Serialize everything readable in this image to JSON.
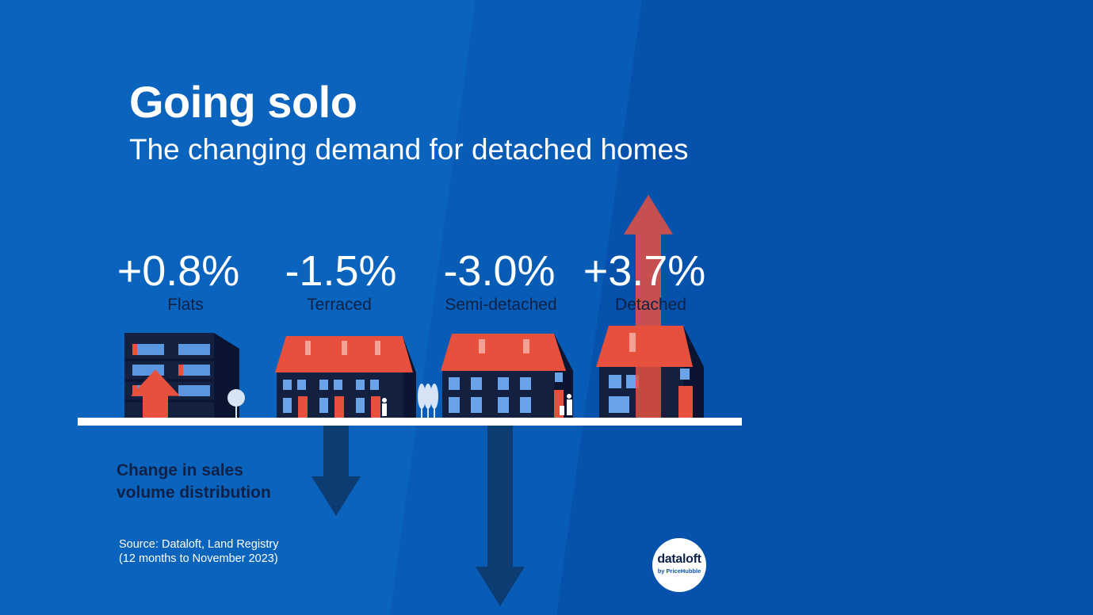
{
  "header": {
    "title": "Going solo",
    "subtitle": "The changing demand for detached homes"
  },
  "legend": {
    "label_line1": "Change in sales",
    "label_line2": "volume distribution"
  },
  "footer": {
    "source_line1": "Source: Dataloft, Land Registry",
    "source_line2": "(12 months to November 2023)",
    "logo_main": "dataloft",
    "logo_sub": "by PriceHubble"
  },
  "colors": {
    "background": "#0b55b0",
    "up_arrow": "#e8503e",
    "down_arrow": "#0d3c73",
    "roof": "#e8503e",
    "building": "#13203f",
    "text_dark": "#0f2147"
  },
  "chart_data": {
    "type": "bar",
    "categories": [
      "Flats",
      "Terraced",
      "Semi-detached",
      "Detached"
    ],
    "values": [
      0.8,
      -1.5,
      -3.0,
      3.7
    ],
    "value_labels": [
      "+0.8%",
      "-1.5%",
      "-3.0%",
      "+3.7%"
    ],
    "unit": "%"
  }
}
